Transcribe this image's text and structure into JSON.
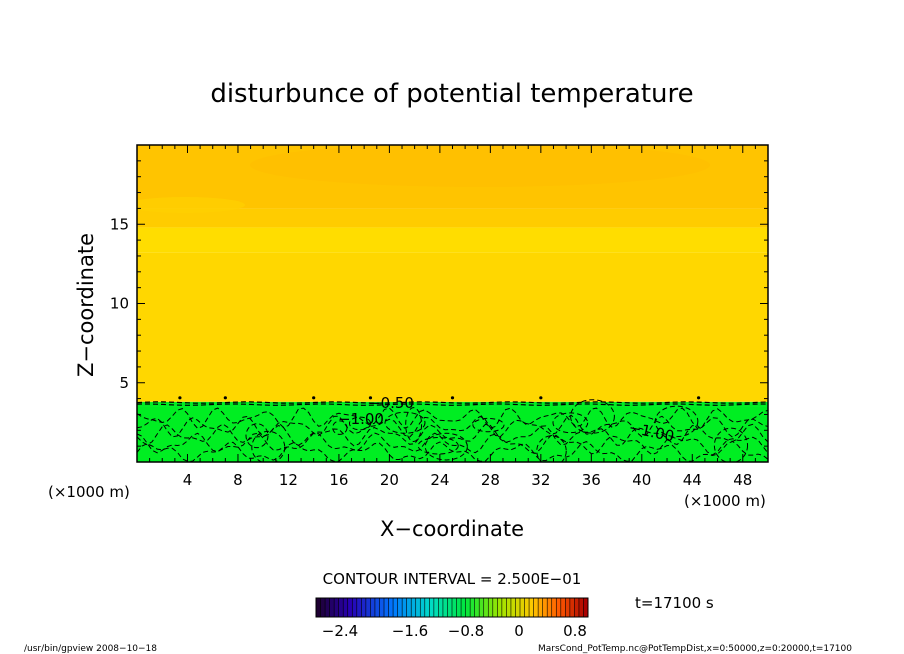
{
  "chart_data": {
    "type": "heatmap",
    "title": "disturbunce of potential temperature",
    "xlabel": "X−coordinate",
    "ylabel": "Z−coordinate",
    "x_unit": "(×1000 m)",
    "xlim": [
      0,
      50
    ],
    "ylim": [
      0,
      20
    ],
    "x_ticks": [
      4,
      8,
      12,
      16,
      20,
      24,
      28,
      32,
      36,
      40,
      44,
      48
    ],
    "y_ticks": [
      5,
      10,
      15
    ],
    "contour_labels": [
      "−0.50",
      "−1.00",
      "−1.00"
    ],
    "contour_levels": [
      -0.5,
      -1.0
    ],
    "contour_interval_text": "CONTOUR INTERVAL = 2.500E−01",
    "bands": [
      {
        "z0": 0,
        "z1": 3.5,
        "color": "#00ee22"
      },
      {
        "z0": 3.5,
        "z1": 3.8,
        "color": "#00ee22"
      },
      {
        "z0": 3.8,
        "z1": 13.2,
        "color": "#ffd700"
      },
      {
        "z0": 13.2,
        "z1": 14.8,
        "color": "#ffdd00"
      },
      {
        "z0": 14.8,
        "z1": 16.0,
        "color": "#ffcc00"
      },
      {
        "z0": 16.0,
        "z1": 20.0,
        "color": "#ffc400"
      }
    ],
    "colorbar": {
      "ticks": [
        "−2.4",
        "−1.6",
        "−0.8",
        "0",
        "0.8"
      ]
    }
  },
  "time_label": "t=17100 s",
  "footer_left": "/usr/bin/gpview   2008−10−18",
  "footer_right": "MarsCond_PotTemp.nc@PotTempDist,x=0:50000,z=0:20000,t=17100"
}
